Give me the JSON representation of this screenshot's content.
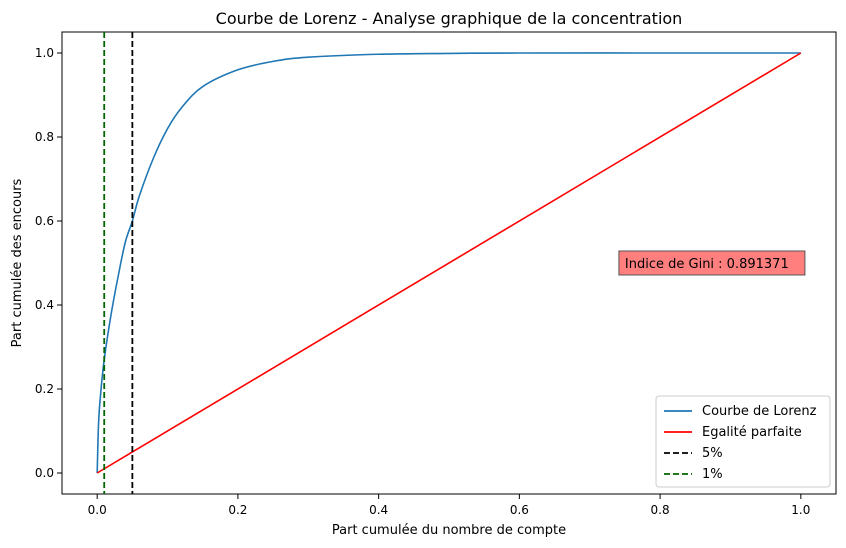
{
  "chart_data": {
    "type": "line",
    "title": "Courbe de Lorenz - Analyse graphique de la concentration",
    "xlabel": "Part cumulée du nombre de compte",
    "ylabel": "Part cumulée des encours",
    "xlim": [
      -0.05,
      1.05
    ],
    "ylim": [
      -0.05,
      1.05
    ],
    "xticks": [
      0.0,
      0.2,
      0.4,
      0.6,
      0.8,
      1.0
    ],
    "yticks": [
      0.0,
      0.2,
      0.4,
      0.6,
      0.8,
      1.0
    ],
    "xtick_labels": [
      "0.0",
      "0.2",
      "0.4",
      "0.6",
      "0.8",
      "1.0"
    ],
    "ytick_labels": [
      "0.0",
      "0.2",
      "0.4",
      "0.6",
      "0.8",
      "1.0"
    ],
    "grid": false,
    "legend_position": "bottom-right",
    "series": [
      {
        "name": "Courbe de Lorenz",
        "color": "#1f77b4",
        "style": "solid",
        "x": [
          0.0,
          0.002,
          0.005,
          0.01,
          0.02,
          0.03,
          0.04,
          0.05,
          0.06,
          0.08,
          0.1,
          0.12,
          0.15,
          0.2,
          0.25,
          0.3,
          0.4,
          0.5,
          0.6,
          0.8,
          1.0
        ],
        "y": [
          0.0,
          0.12,
          0.19,
          0.27,
          0.38,
          0.47,
          0.55,
          0.6,
          0.66,
          0.75,
          0.82,
          0.87,
          0.92,
          0.96,
          0.98,
          0.99,
          0.997,
          0.999,
          1.0,
          1.0,
          1.0
        ]
      },
      {
        "name": "Egalité parfaite",
        "color": "#ff0000",
        "style": "solid",
        "x": [
          0.0,
          1.0
        ],
        "y": [
          0.0,
          1.0
        ]
      }
    ],
    "vlines": [
      {
        "name": "5%",
        "x": 0.05,
        "color": "#000000",
        "style": "dashed"
      },
      {
        "name": "1%",
        "x": 0.01,
        "color": "#006400",
        "style": "dashed"
      }
    ],
    "annotation": {
      "text": "Indice de Gini : 0.891371",
      "x": 0.75,
      "y": 0.5,
      "background": "#ff7f7f"
    }
  }
}
